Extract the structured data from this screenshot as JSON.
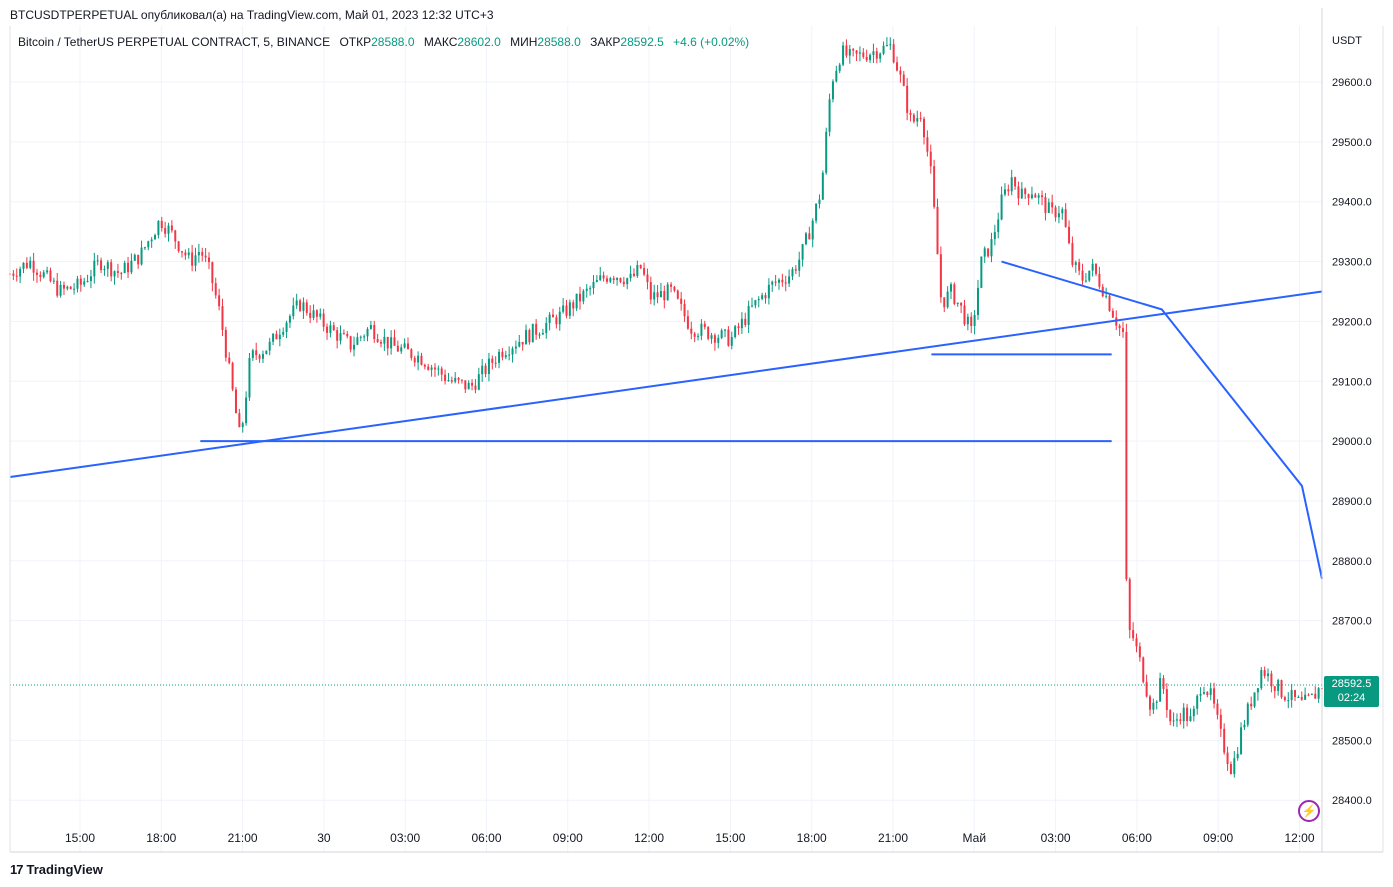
{
  "header": {
    "publish_line": "BTCUSDTPERPETUAL опубликовал(а) на TradingView.com, Май 01, 2023 12:32 UTC+3"
  },
  "legend": {
    "symbol": "Bitcoin / TetherUS PERPETUAL CONTRACT, 5, BINANCE",
    "open_label": "ОТКР",
    "open_value": "28588.0",
    "high_label": "МАКС",
    "high_value": "28602.0",
    "low_label": "МИН",
    "low_value": "28588.0",
    "close_label": "ЗАКР",
    "close_value": "28592.5",
    "change": "+4.6 (+0.02%)"
  },
  "price_scale": {
    "unit": "USDT",
    "current_price": "28592.5",
    "countdown": "02:24"
  },
  "footer": {
    "brand": "TradingView"
  },
  "colors": {
    "up": "#089981",
    "down": "#f23645",
    "drawing": "#2962ff",
    "grid": "#f0f3fa",
    "lightning": "#9c27b0"
  },
  "icons": {
    "lightning": "lightning-icon",
    "logo": "tradingview-logo-icon"
  },
  "chart_data": {
    "type": "candlestick",
    "interval": "5",
    "y_ticks": [
      29600,
      29500,
      29400,
      29300,
      29200,
      29100,
      29000,
      28900,
      28800,
      28700,
      28500,
      28400
    ],
    "y_tick_labels": [
      "29600.0",
      "29500.0",
      "29400.0",
      "29300.0",
      "29200.0",
      "29100.0",
      "29000.0",
      "28900.0",
      "28800.0",
      "28700.0",
      "28500.0",
      "28400.0"
    ],
    "ylim": [
      28360,
      29700
    ],
    "x_ticks": [
      "15:00",
      "18:00",
      "21:00",
      "30",
      "03:00",
      "06:00",
      "09:00",
      "12:00",
      "15:00",
      "18:00",
      "21:00",
      "Май",
      "03:00",
      "06:00",
      "09:00",
      "12:00"
    ],
    "current_price": 28592.5,
    "price_path": [
      [
        0,
        29280
      ],
      [
        2,
        29300
      ],
      [
        5,
        29250
      ],
      [
        7,
        29260
      ],
      [
        9,
        29300
      ],
      [
        11,
        29280
      ],
      [
        13,
        29310
      ],
      [
        15,
        29370
      ],
      [
        16,
        29350
      ],
      [
        18,
        29300
      ],
      [
        19,
        29320
      ],
      [
        20,
        29280
      ],
      [
        21,
        29210
      ],
      [
        23,
        29000
      ],
      [
        24,
        29140
      ],
      [
        26,
        29160
      ],
      [
        27,
        29190
      ],
      [
        29,
        29230
      ],
      [
        31,
        29200
      ],
      [
        34,
        29160
      ],
      [
        36,
        29190
      ],
      [
        38,
        29160
      ],
      [
        41,
        29140
      ],
      [
        44,
        29100
      ],
      [
        46,
        29090
      ],
      [
        49,
        29150
      ],
      [
        52,
        29180
      ],
      [
        55,
        29210
      ],
      [
        57,
        29240
      ],
      [
        59,
        29270
      ],
      [
        60,
        29280
      ],
      [
        62,
        29270
      ],
      [
        63,
        29290
      ],
      [
        64,
        29240
      ],
      [
        66,
        29250
      ],
      [
        68,
        29190
      ],
      [
        70,
        29180
      ],
      [
        72,
        29170
      ],
      [
        74,
        29220
      ],
      [
        76,
        29260
      ],
      [
        78,
        29280
      ],
      [
        79,
        29310
      ],
      [
        80,
        29360
      ],
      [
        81,
        29420
      ],
      [
        82,
        29600
      ],
      [
        83,
        29650
      ],
      [
        84,
        29640
      ],
      [
        86,
        29650
      ],
      [
        88,
        29660
      ],
      [
        89,
        29600
      ],
      [
        90,
        29530
      ],
      [
        91,
        29550
      ],
      [
        92,
        29440
      ],
      [
        93,
        29230
      ],
      [
        94,
        29250
      ],
      [
        95,
        29220
      ],
      [
        96,
        29180
      ],
      [
        97,
        29300
      ],
      [
        98,
        29330
      ],
      [
        99,
        29400
      ],
      [
        100,
        29440
      ],
      [
        101,
        29410
      ],
      [
        102,
        29420
      ],
      [
        104,
        29380
      ],
      [
        105,
        29390
      ],
      [
        106,
        29300
      ],
      [
        107,
        29270
      ],
      [
        108,
        29290
      ],
      [
        109,
        29260
      ],
      [
        110,
        29220
      ],
      [
        111,
        29180
      ],
      [
        111.5,
        28760
      ],
      [
        112,
        28680
      ],
      [
        113,
        28620
      ],
      [
        114,
        28550
      ],
      [
        115,
        28600
      ],
      [
        116,
        28520
      ],
      [
        117,
        28550
      ],
      [
        118,
        28530
      ],
      [
        119,
        28600
      ],
      [
        120,
        28570
      ],
      [
        121,
        28500
      ],
      [
        122,
        28450
      ],
      [
        123,
        28520
      ],
      [
        124,
        28570
      ],
      [
        125,
        28620
      ],
      [
        126,
        28600
      ],
      [
        127,
        28580
      ],
      [
        128,
        28570
      ],
      [
        129,
        28560
      ],
      [
        130,
        28570
      ],
      [
        131,
        28592.5
      ]
    ],
    "x_index_range": [
      0,
      131
    ],
    "drawings": [
      {
        "type": "trend_line",
        "from": [
          0,
          28940
        ],
        "to": [
          131,
          29250
        ]
      },
      {
        "type": "horizontal_segment",
        "price": 29000,
        "from_index": 19,
        "to_index": 110
      },
      {
        "type": "horizontal_segment",
        "price": 29145,
        "from_index": 92,
        "to_index": 110
      },
      {
        "type": "polyline",
        "points": [
          [
            99,
            29300
          ],
          [
            115,
            29220
          ],
          [
            129,
            28925
          ],
          [
            131,
            28770
          ]
        ]
      }
    ]
  }
}
